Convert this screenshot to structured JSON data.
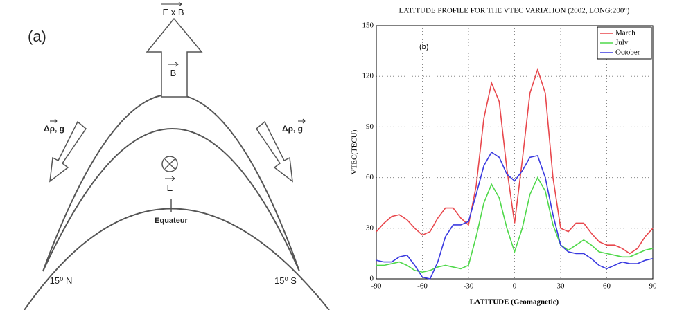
{
  "panel_a": {
    "label": "(a)",
    "exb": "E x B",
    "b": "B",
    "force_left": "Δρ, g",
    "force_right": "Δρ, g",
    "e": "E",
    "equator": "Equateur",
    "north": "15⁰ N",
    "south": "15⁰ S"
  },
  "chart_data": {
    "type": "line",
    "title": "LATITUDE PROFILE FOR THE VTEC VARIATION (2002, LONG:200°)",
    "panel_label": "(b)",
    "x_label": "LATITUDE (Geomagnetic)",
    "y_label": "VTEC(TECU)",
    "x": [
      -90,
      -85,
      -80,
      -75,
      -70,
      -65,
      -60,
      -55,
      -50,
      -45,
      -40,
      -35,
      -30,
      -25,
      -20,
      -15,
      -10,
      -5,
      0,
      5,
      10,
      15,
      20,
      25,
      30,
      35,
      40,
      45,
      50,
      55,
      60,
      65,
      70,
      75,
      80,
      85,
      90
    ],
    "series": [
      {
        "name": "March",
        "color": "#e8474c",
        "values": [
          28,
          33,
          37,
          38,
          35,
          30,
          26,
          28,
          36,
          42,
          42,
          36,
          32,
          55,
          95,
          116,
          105,
          65,
          33,
          70,
          110,
          124,
          110,
          60,
          30,
          28,
          33,
          33,
          27,
          22,
          20,
          20,
          18,
          15,
          18,
          25,
          30
        ]
      },
      {
        "name": "July",
        "color": "#4fd84a",
        "values": [
          8,
          8,
          9,
          10,
          8,
          5,
          4,
          5,
          7,
          8,
          7,
          6,
          8,
          25,
          45,
          56,
          48,
          30,
          16,
          30,
          50,
          60,
          52,
          32,
          20,
          17,
          20,
          23,
          20,
          16,
          15,
          14,
          13,
          13,
          15,
          17,
          18
        ]
      },
      {
        "name": "October",
        "color": "#3a3ae0",
        "values": [
          11,
          10,
          10,
          13,
          14,
          8,
          1,
          0,
          10,
          25,
          32,
          32,
          34,
          50,
          67,
          75,
          72,
          62,
          58,
          64,
          72,
          73,
          60,
          38,
          20,
          16,
          15,
          15,
          12,
          8,
          6,
          8,
          10,
          9,
          9,
          11,
          12
        ]
      }
    ],
    "xlim": [
      -90,
      90
    ],
    "xticks": [
      -90,
      -60,
      -30,
      0,
      30,
      60,
      90
    ],
    "ylim": [
      0,
      150
    ],
    "yticks": [
      0,
      30,
      60,
      90,
      120,
      150
    ],
    "grid": true,
    "legend": "upper-right"
  }
}
